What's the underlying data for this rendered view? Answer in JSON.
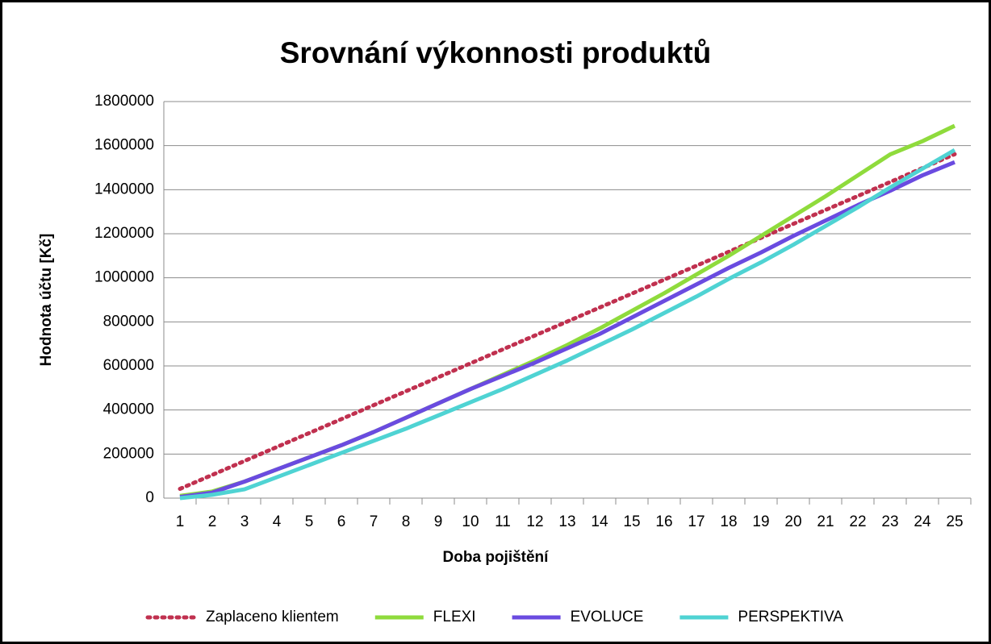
{
  "chart_data": {
    "type": "line",
    "title": "Srovnání výkonnosti produktů",
    "xlabel": "Doba pojištění",
    "ylabel": "Hodnota účtu [Kč]",
    "categories": [
      "1",
      "2",
      "3",
      "4",
      "5",
      "6",
      "7",
      "8",
      "9",
      "10",
      "11",
      "12",
      "13",
      "14",
      "15",
      "16",
      "17",
      "18",
      "19",
      "20",
      "21",
      "22",
      "23",
      "24",
      "25"
    ],
    "series": [
      {
        "name": "Zaplaceno klientem",
        "color": "#c0304f",
        "dash": "dotted",
        "values": [
          42000,
          105300,
          168600,
          231900,
          295200,
          358500,
          421800,
          485100,
          548400,
          611700,
          675000,
          738300,
          801600,
          864900,
          928200,
          991500,
          1054800,
          1118100,
          1181400,
          1244700,
          1308000,
          1371300,
          1434600,
          1497900,
          1561200
        ]
      },
      {
        "name": "FLEXI",
        "color": "#8fdb3c",
        "values": [
          10000,
          30000,
          75000,
          130000,
          185000,
          240000,
          300000,
          365000,
          430000,
          495000,
          560000,
          625000,
          695000,
          770000,
          850000,
          930000,
          1015000,
          1100000,
          1190000,
          1280000,
          1370000,
          1465000,
          1560000,
          1620000,
          1690000
        ]
      },
      {
        "name": "EVOLUCE",
        "color": "#6a4be0",
        "values": [
          5000,
          25000,
          75000,
          130000,
          185000,
          240000,
          300000,
          365000,
          430000,
          495000,
          555000,
          615000,
          680000,
          745000,
          820000,
          895000,
          970000,
          1045000,
          1115000,
          1190000,
          1260000,
          1330000,
          1395000,
          1465000,
          1525000
        ]
      },
      {
        "name": "PERSPEKTIVA",
        "color": "#4fd3d3",
        "values": [
          0,
          15000,
          40000,
          95000,
          150000,
          205000,
          260000,
          315000,
          375000,
          435000,
          495000,
          560000,
          625000,
          695000,
          765000,
          840000,
          915000,
          995000,
          1070000,
          1150000,
          1235000,
          1320000,
          1410000,
          1495000,
          1580000
        ]
      }
    ],
    "ylim": [
      0,
      1800000
    ],
    "yticks": [
      0,
      200000,
      400000,
      600000,
      800000,
      1000000,
      1200000,
      1400000,
      1600000,
      1800000
    ],
    "grid": true,
    "legend": "bottom"
  }
}
